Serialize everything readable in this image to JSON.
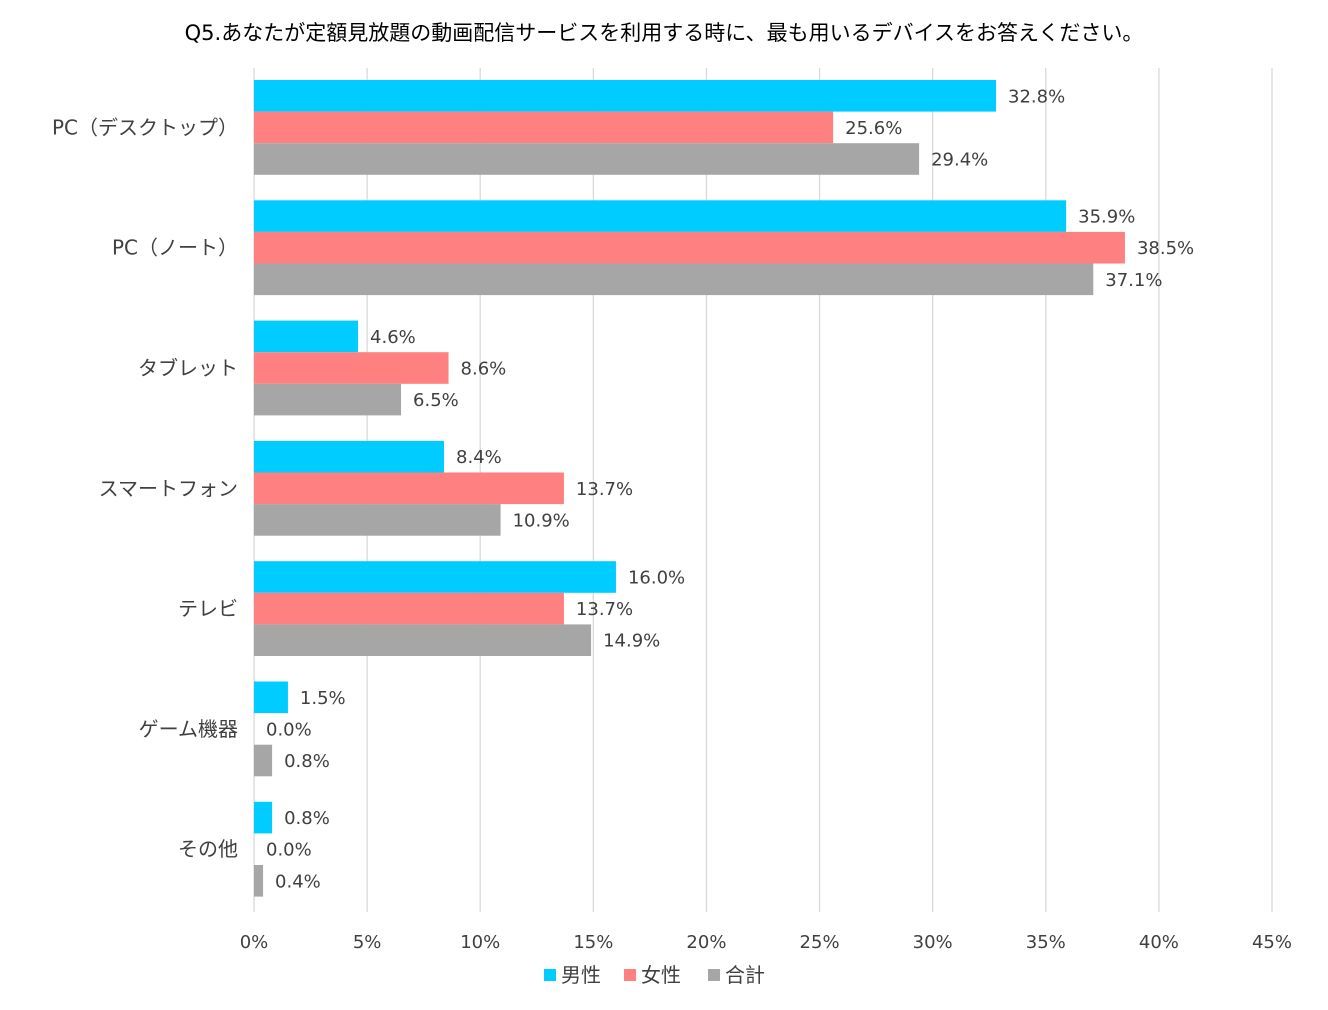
{
  "chart_data": {
    "type": "bar",
    "orientation": "horizontal",
    "title": "Q5.あなたが定額見放題の動画配信サービスを利用する時に、最も用いるデバイスをお答えください。",
    "categories": [
      "PC（デスクトップ）",
      "PC（ノート）",
      "タブレット",
      "スマートフォン",
      "テレビ",
      "ゲーム機器",
      "その他"
    ],
    "series": [
      {
        "name": "男性",
        "color": "#00CCFF",
        "values": [
          32.8,
          35.9,
          4.6,
          8.4,
          16.0,
          1.5,
          0.8
        ],
        "labels": [
          "32.8%",
          "35.9%",
          "4.6%",
          "8.4%",
          "16.0%",
          "1.5%",
          "0.8%"
        ]
      },
      {
        "name": "女性",
        "color": "#FF8080",
        "values": [
          25.6,
          38.5,
          8.6,
          13.7,
          13.7,
          0.0,
          0.0
        ],
        "labels": [
          "25.6%",
          "38.5%",
          "8.6%",
          "13.7%",
          "13.7%",
          "0.0%",
          "0.0%"
        ]
      },
      {
        "name": "合計",
        "color": "#A6A6A6",
        "values": [
          29.4,
          37.1,
          6.5,
          10.9,
          14.9,
          0.8,
          0.4
        ],
        "labels": [
          "29.4%",
          "37.1%",
          "6.5%",
          "10.9%",
          "14.9%",
          "0.8%",
          "0.4%"
        ]
      }
    ],
    "xlim": [
      0,
      45
    ],
    "x_ticks": [
      0,
      5,
      10,
      15,
      20,
      25,
      30,
      35,
      40,
      45
    ],
    "x_tick_labels": [
      "0%",
      "5%",
      "10%",
      "15%",
      "20%",
      "25%",
      "30%",
      "35%",
      "40%",
      "45%"
    ],
    "grid": true,
    "legend_position": "bottom"
  }
}
